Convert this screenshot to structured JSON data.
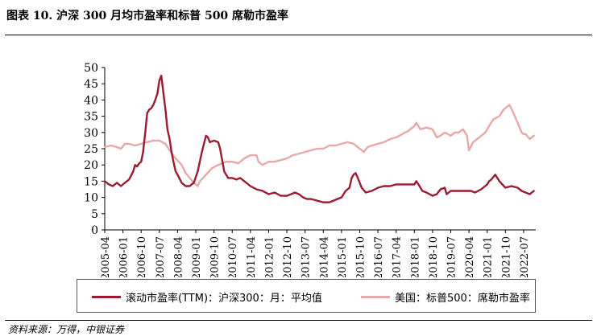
{
  "figure": {
    "title": "图表 10. 沪深 300 月均市盈率和标普 500 席勒市盈率",
    "source": "资料来源：万得，中银证券"
  },
  "chart_data": {
    "type": "line",
    "title": "图表 10. 沪深 300 月均市盈率和标普 500 席勒市盈率",
    "xlabel": "",
    "ylabel": "",
    "ylim": [
      0,
      50
    ],
    "yticks": [
      0,
      5,
      10,
      15,
      20,
      25,
      30,
      35,
      40,
      45,
      50
    ],
    "xlim": [
      2005.25,
      2023.0
    ],
    "xtick_labels": [
      "2005-04",
      "2006-01",
      "2006-10",
      "2007-07",
      "2008-04",
      "2009-01",
      "2009-10",
      "2010-07",
      "2011-04",
      "2012-01",
      "2012-10",
      "2013-07",
      "2014-04",
      "2015-01",
      "2015-10",
      "2016-07",
      "2017-04",
      "2018-01",
      "2018-10",
      "2019-07",
      "2020-04",
      "2021-01",
      "2021-10",
      "2022-07"
    ],
    "xtick_positions": [
      2005.25,
      2006.0,
      2006.75,
      2007.5,
      2008.25,
      2009.0,
      2009.75,
      2010.5,
      2011.25,
      2012.0,
      2012.75,
      2013.5,
      2014.25,
      2015.0,
      2015.75,
      2016.5,
      2017.25,
      2018.0,
      2018.75,
      2019.5,
      2020.25,
      2021.0,
      2021.75,
      2022.5
    ],
    "legend_position": "bottom",
    "series": [
      {
        "name": "滚动市盈率(TTM)：沪深300：月：平均值",
        "color": "#9b1b30",
        "x": [
          2005.25,
          2005.42,
          2005.58,
          2005.75,
          2005.92,
          2006.08,
          2006.25,
          2006.42,
          2006.5,
          2006.58,
          2006.67,
          2006.75,
          2006.83,
          2006.92,
          2007.0,
          2007.08,
          2007.17,
          2007.25,
          2007.33,
          2007.42,
          2007.5,
          2007.58,
          2007.67,
          2007.75,
          2007.83,
          2007.92,
          2008.0,
          2008.08,
          2008.17,
          2008.25,
          2008.42,
          2008.58,
          2008.75,
          2008.83,
          2008.92,
          2009.08,
          2009.25,
          2009.42,
          2009.5,
          2009.58,
          2009.75,
          2009.92,
          2010.0,
          2010.17,
          2010.33,
          2010.5,
          2010.67,
          2010.83,
          2011.0,
          2011.25,
          2011.5,
          2011.75,
          2012.0,
          2012.25,
          2012.5,
          2012.75,
          2012.92,
          2013.08,
          2013.25,
          2013.42,
          2013.58,
          2013.75,
          2014.0,
          2014.25,
          2014.5,
          2014.67,
          2014.83,
          2015.0,
          2015.17,
          2015.33,
          2015.42,
          2015.5,
          2015.58,
          2015.67,
          2015.83,
          2016.0,
          2016.25,
          2016.5,
          2016.75,
          2017.0,
          2017.25,
          2017.5,
          2017.75,
          2018.0,
          2018.08,
          2018.17,
          2018.33,
          2018.5,
          2018.75,
          2018.92,
          2019.08,
          2019.25,
          2019.33,
          2019.5,
          2019.75,
          2020.0,
          2020.17,
          2020.33,
          2020.5,
          2020.75,
          2021.0,
          2021.08,
          2021.17,
          2021.33,
          2021.5,
          2021.75,
          2022.0,
          2022.25,
          2022.42,
          2022.58,
          2022.75,
          2022.92
        ],
        "values": [
          15,
          14,
          13.5,
          14.5,
          13.5,
          14.5,
          15.5,
          18,
          20,
          19.5,
          20.5,
          21,
          24,
          30,
          36,
          37,
          37.5,
          38.5,
          40,
          42,
          46,
          47.5,
          42,
          37,
          31,
          28,
          24,
          21,
          18,
          17,
          14.5,
          13.5,
          13.5,
          14,
          14.5,
          18,
          24,
          29,
          28.5,
          27,
          27.5,
          27,
          25,
          18,
          16,
          16,
          15.5,
          16,
          15,
          13.5,
          12.5,
          12,
          11,
          11.5,
          10.5,
          10.5,
          11,
          11.5,
          11,
          10,
          9.5,
          9.5,
          9,
          8.5,
          8.5,
          9,
          9.5,
          10,
          12,
          13,
          16,
          17,
          17.5,
          16,
          13,
          11.5,
          12,
          13,
          13.5,
          13.5,
          14,
          14,
          14,
          14,
          15,
          14,
          12,
          11.5,
          10.5,
          11,
          12.5,
          13,
          11,
          12,
          12,
          12,
          12,
          12,
          11.5,
          12.5,
          14,
          15,
          15.5,
          17,
          15,
          13,
          13.5,
          13,
          12,
          11.5,
          11,
          12
        ]
      },
      {
        "name": "美国：标普500：席勒市盈率",
        "color": "#e8a8a8",
        "x": [
          2005.25,
          2005.5,
          2005.75,
          2005.92,
          2006.08,
          2006.25,
          2006.5,
          2006.75,
          2007.0,
          2007.25,
          2007.5,
          2007.75,
          2007.92,
          2008.17,
          2008.42,
          2008.58,
          2008.75,
          2008.92,
          2009.08,
          2009.17,
          2009.42,
          2009.67,
          2009.92,
          2010.25,
          2010.5,
          2010.75,
          2011.0,
          2011.25,
          2011.5,
          2011.58,
          2011.75,
          2012.0,
          2012.25,
          2012.5,
          2012.75,
          2013.0,
          2013.25,
          2013.5,
          2013.75,
          2014.0,
          2014.25,
          2014.5,
          2014.75,
          2015.0,
          2015.25,
          2015.5,
          2015.75,
          2015.92,
          2016.08,
          2016.25,
          2016.5,
          2016.75,
          2017.0,
          2017.25,
          2017.5,
          2017.75,
          2018.0,
          2018.08,
          2018.25,
          2018.5,
          2018.75,
          2018.92,
          2019.08,
          2019.25,
          2019.5,
          2019.67,
          2019.83,
          2020.0,
          2020.17,
          2020.25,
          2020.42,
          2020.67,
          2020.92,
          2021.08,
          2021.25,
          2021.5,
          2021.67,
          2021.83,
          2021.92,
          2022.08,
          2022.25,
          2022.42,
          2022.5,
          2022.58,
          2022.75,
          2022.92
        ],
        "values": [
          25.5,
          26,
          25.5,
          25,
          26.5,
          26.5,
          26,
          26.5,
          27,
          27.5,
          27.5,
          26.5,
          24.5,
          22,
          20,
          17.5,
          16,
          14.5,
          13.5,
          15,
          17,
          19,
          20,
          21,
          21,
          20.5,
          22,
          23,
          23,
          21,
          20,
          21,
          21,
          21.5,
          22,
          23,
          23.5,
          24,
          24.5,
          25,
          25,
          26,
          26,
          26.5,
          27,
          26.5,
          25,
          24,
          25.5,
          26,
          26.5,
          27,
          28,
          28.5,
          29.5,
          30.5,
          32,
          33,
          31,
          31.5,
          31,
          28.5,
          29,
          30,
          29,
          30,
          30,
          31,
          29,
          24.5,
          27,
          28.5,
          30,
          32,
          34,
          35,
          37,
          38,
          38.5,
          36,
          33,
          30,
          29.5,
          29.5,
          28,
          29
        ]
      }
    ]
  },
  "legend": {
    "item1": "滚动市盈率(TTM)：沪深300：月：平均值",
    "item2": "美国：标普500：席勒市盈率"
  }
}
